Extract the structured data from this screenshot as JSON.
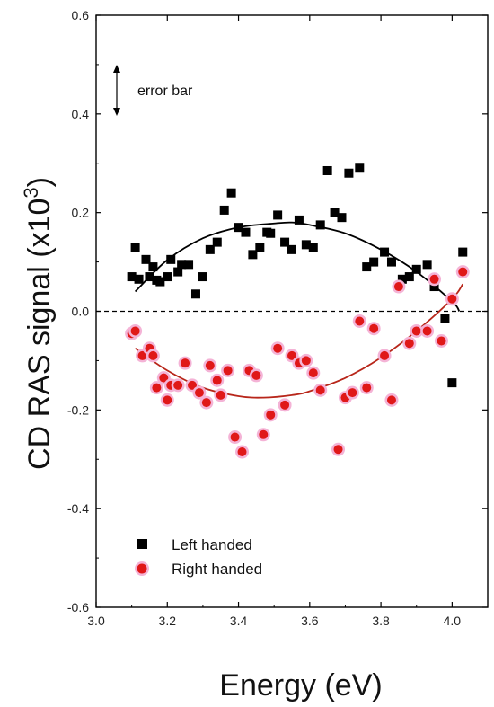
{
  "chart_data": {
    "type": "scatter",
    "xlabel": "Energy (eV)",
    "ylabel_main": "CD RAS signal (x10",
    "ylabel_sup": "3",
    "ylabel_close": ")",
    "xlim": [
      3.0,
      4.1
    ],
    "ylim": [
      -0.6,
      0.6
    ],
    "x_ticks": [
      3.0,
      3.2,
      3.4,
      3.6,
      3.8,
      4.0
    ],
    "x_tick_labels": [
      "3.0",
      "3.2",
      "3.4",
      "3.6",
      "3.8",
      "4.0"
    ],
    "y_ticks": [
      -0.6,
      -0.4,
      -0.2,
      0.0,
      0.2,
      0.4,
      0.6
    ],
    "y_tick_labels": [
      "-0.6",
      "-0.4",
      "-0.2",
      "0.0",
      "0.2",
      "0.4",
      "0.6"
    ],
    "reference_line_y": 0.0,
    "annotation": "error bar",
    "legend_position": "bottom-left",
    "series": [
      {
        "name": "Left handed",
        "marker": "square",
        "color": "#000000",
        "points": [
          [
            3.1,
            0.07
          ],
          [
            3.11,
            0.13
          ],
          [
            3.12,
            0.065
          ],
          [
            3.14,
            0.105
          ],
          [
            3.15,
            0.07
          ],
          [
            3.16,
            0.09
          ],
          [
            3.17,
            0.063
          ],
          [
            3.18,
            0.06
          ],
          [
            3.2,
            0.07
          ],
          [
            3.21,
            0.105
          ],
          [
            3.23,
            0.08
          ],
          [
            3.24,
            0.095
          ],
          [
            3.26,
            0.095
          ],
          [
            3.28,
            0.035
          ],
          [
            3.3,
            0.07
          ],
          [
            3.32,
            0.125
          ],
          [
            3.34,
            0.14
          ],
          [
            3.36,
            0.205
          ],
          [
            3.38,
            0.24
          ],
          [
            3.4,
            0.17
          ],
          [
            3.42,
            0.16
          ],
          [
            3.44,
            0.115
          ],
          [
            3.46,
            0.13
          ],
          [
            3.48,
            0.16
          ],
          [
            3.49,
            0.158
          ],
          [
            3.51,
            0.195
          ],
          [
            3.53,
            0.14
          ],
          [
            3.55,
            0.125
          ],
          [
            3.57,
            0.185
          ],
          [
            3.59,
            0.135
          ],
          [
            3.61,
            0.13
          ],
          [
            3.63,
            0.175
          ],
          [
            3.65,
            0.285
          ],
          [
            3.67,
            0.2
          ],
          [
            3.69,
            0.19
          ],
          [
            3.71,
            0.28
          ],
          [
            3.74,
            0.29
          ],
          [
            3.76,
            0.09
          ],
          [
            3.78,
            0.1
          ],
          [
            3.81,
            0.12
          ],
          [
            3.83,
            0.1
          ],
          [
            3.86,
            0.065
          ],
          [
            3.88,
            0.07
          ],
          [
            3.9,
            0.085
          ],
          [
            3.93,
            0.095
          ],
          [
            3.95,
            0.05
          ],
          [
            3.98,
            -0.015
          ],
          [
            4.0,
            -0.145
          ],
          [
            4.03,
            0.12
          ]
        ],
        "fit": [
          [
            3.11,
            0.04
          ],
          [
            3.2,
            0.104
          ],
          [
            3.3,
            0.148
          ],
          [
            3.4,
            0.17
          ],
          [
            3.5,
            0.178
          ],
          [
            3.55,
            0.18
          ],
          [
            3.6,
            0.175
          ],
          [
            3.7,
            0.158
          ],
          [
            3.8,
            0.125
          ],
          [
            3.9,
            0.08
          ],
          [
            4.0,
            0.02
          ],
          [
            4.02,
            0.0
          ]
        ]
      },
      {
        "name": "Right handed",
        "marker": "circle",
        "color": "#e01818",
        "halo": "#f4b3d6",
        "points": [
          [
            3.1,
            -0.045
          ],
          [
            3.11,
            -0.04
          ],
          [
            3.13,
            -0.09
          ],
          [
            3.15,
            -0.075
          ],
          [
            3.16,
            -0.09
          ],
          [
            3.17,
            -0.155
          ],
          [
            3.19,
            -0.135
          ],
          [
            3.2,
            -0.18
          ],
          [
            3.21,
            -0.15
          ],
          [
            3.23,
            -0.15
          ],
          [
            3.25,
            -0.105
          ],
          [
            3.27,
            -0.15
          ],
          [
            3.29,
            -0.165
          ],
          [
            3.31,
            -0.185
          ],
          [
            3.32,
            -0.11
          ],
          [
            3.34,
            -0.14
          ],
          [
            3.35,
            -0.17
          ],
          [
            3.37,
            -0.12
          ],
          [
            3.39,
            -0.255
          ],
          [
            3.41,
            -0.285
          ],
          [
            3.43,
            -0.12
          ],
          [
            3.45,
            -0.13
          ],
          [
            3.47,
            -0.25
          ],
          [
            3.49,
            -0.21
          ],
          [
            3.51,
            -0.075
          ],
          [
            3.53,
            -0.19
          ],
          [
            3.55,
            -0.09
          ],
          [
            3.57,
            -0.105
          ],
          [
            3.59,
            -0.1
          ],
          [
            3.61,
            -0.125
          ],
          [
            3.63,
            -0.16
          ],
          [
            3.68,
            -0.28
          ],
          [
            3.7,
            -0.175
          ],
          [
            3.72,
            -0.165
          ],
          [
            3.74,
            -0.02
          ],
          [
            3.76,
            -0.155
          ],
          [
            3.78,
            -0.035
          ],
          [
            3.81,
            -0.09
          ],
          [
            3.83,
            -0.18
          ],
          [
            3.85,
            0.05
          ],
          [
            3.88,
            -0.065
          ],
          [
            3.9,
            -0.04
          ],
          [
            3.93,
            -0.04
          ],
          [
            3.95,
            0.065
          ],
          [
            3.97,
            -0.06
          ],
          [
            4.0,
            0.025
          ],
          [
            4.03,
            0.08
          ]
        ],
        "fit": [
          [
            3.11,
            -0.075
          ],
          [
            3.2,
            -0.12
          ],
          [
            3.3,
            -0.155
          ],
          [
            3.4,
            -0.172
          ],
          [
            3.47,
            -0.175
          ],
          [
            3.55,
            -0.17
          ],
          [
            3.6,
            -0.162
          ],
          [
            3.7,
            -0.135
          ],
          [
            3.8,
            -0.094
          ],
          [
            3.9,
            -0.04
          ],
          [
            4.0,
            0.025
          ],
          [
            4.03,
            0.055
          ]
        ]
      }
    ]
  }
}
